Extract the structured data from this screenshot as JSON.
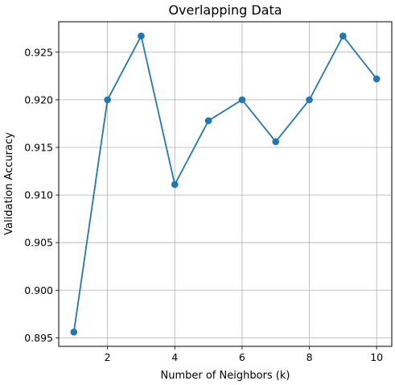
{
  "chart_data": {
    "type": "line",
    "title": "Overlapping Data",
    "xlabel": "Number of Neighbors (k)",
    "ylabel": "Validation Accuracy",
    "x": [
      1,
      2,
      3,
      4,
      5,
      6,
      7,
      8,
      9,
      10
    ],
    "series": [
      {
        "values": [
          0.8956,
          0.92,
          0.9267,
          0.9111,
          0.9178,
          0.92,
          0.9156,
          0.92,
          0.9267,
          0.9222
        ],
        "color": "#1f77b4",
        "marker": "circle"
      }
    ],
    "xticks": [
      2,
      4,
      6,
      8,
      10
    ],
    "xtick_labels": [
      "2",
      "4",
      "6",
      "8",
      "10"
    ],
    "yticks": [
      0.895,
      0.9,
      0.905,
      0.91,
      0.915,
      0.92,
      0.925
    ],
    "ytick_labels": [
      "0.895",
      "0.900",
      "0.905",
      "0.910",
      "0.915",
      "0.920",
      "0.925"
    ],
    "xlim": [
      0.55,
      10.45
    ],
    "ylim": [
      0.8941,
      0.9282
    ],
    "grid": true
  }
}
